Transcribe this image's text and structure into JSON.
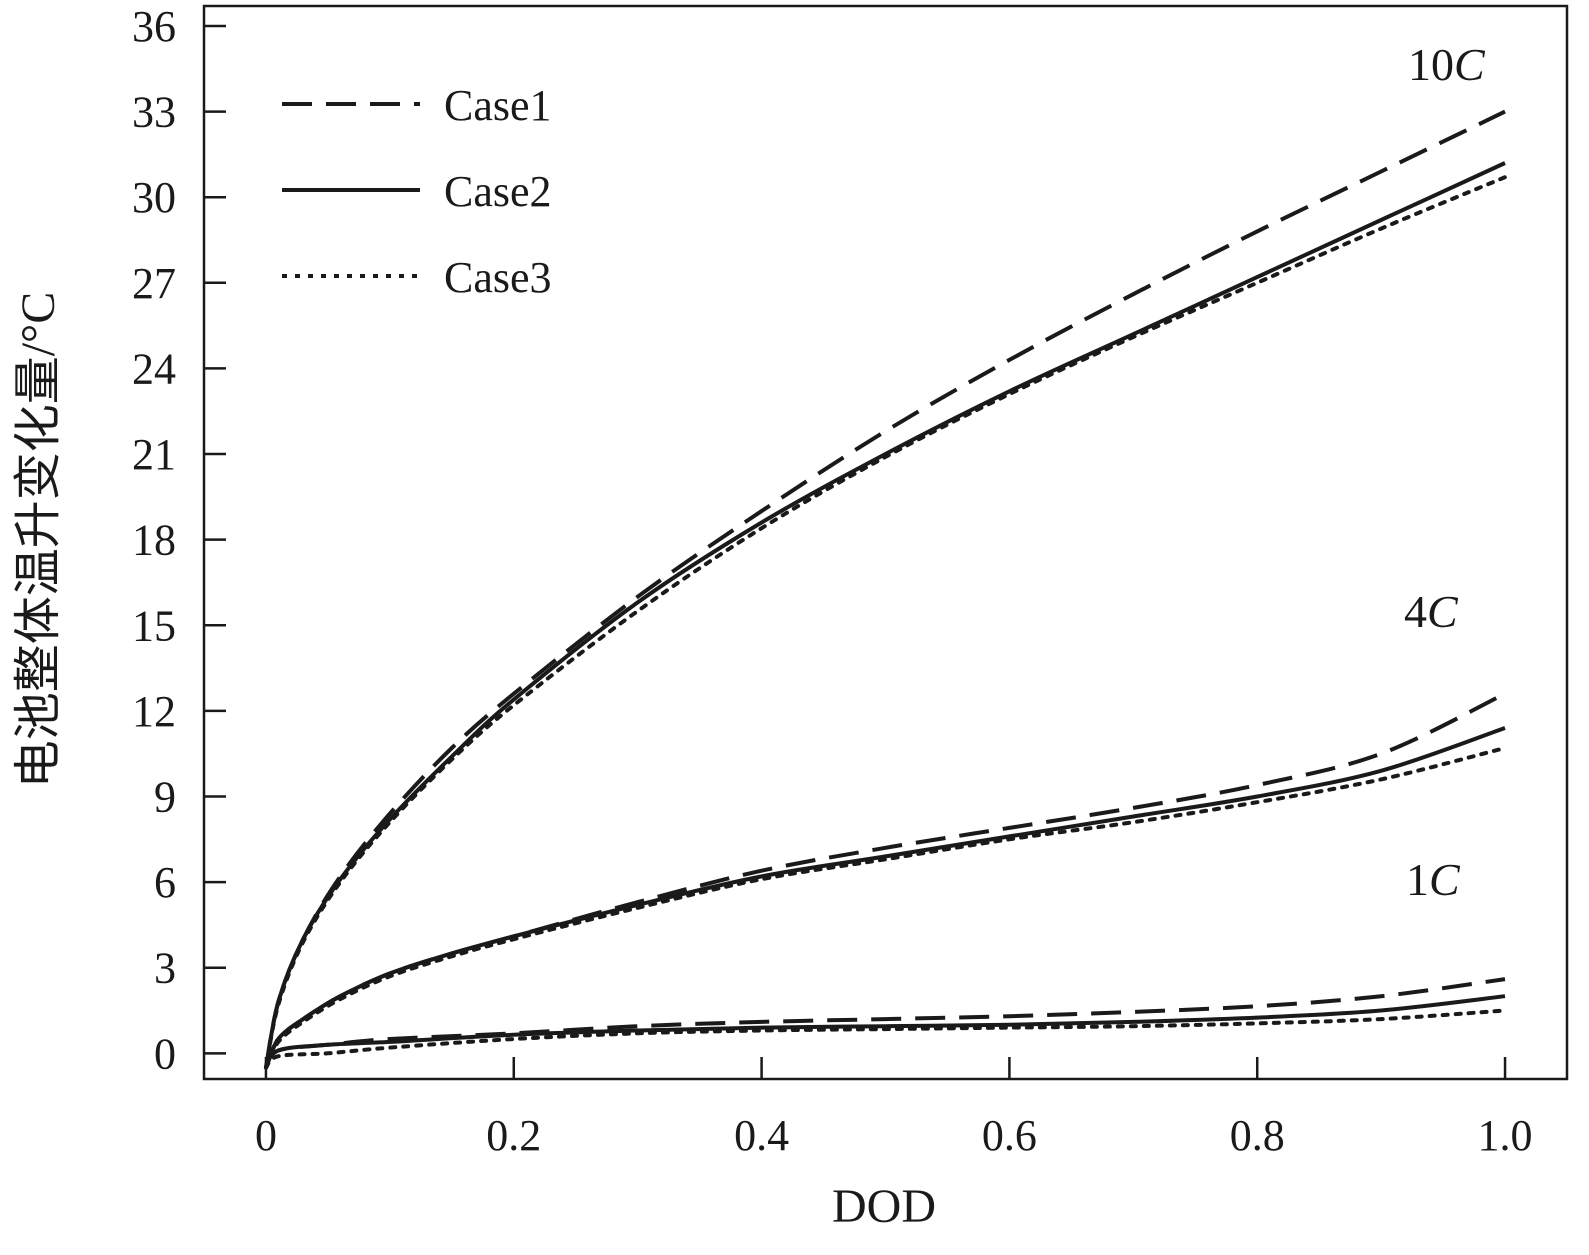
{
  "chart_data": {
    "type": "line",
    "title": "",
    "xlabel": "DOD",
    "ylabel": "电池整体温升变化量/°C",
    "xlim": [
      -0.05,
      1.05
    ],
    "ylim": [
      -0.9,
      36.7
    ],
    "xticks": [
      0,
      0.2,
      0.4,
      0.6,
      0.8,
      1.0
    ],
    "xtick_labels": [
      "0",
      "0.2",
      "0.4",
      "0.6",
      "0.8",
      "1.0"
    ],
    "yticks": [
      0,
      3,
      6,
      9,
      12,
      15,
      18,
      21,
      24,
      27,
      30,
      33,
      36
    ],
    "ytick_labels": [
      "0",
      "3",
      "6",
      "9",
      "12",
      "15",
      "18",
      "21",
      "24",
      "27",
      "30",
      "33",
      "36"
    ],
    "grid": false,
    "legend": {
      "position": "top-left",
      "entries": [
        {
          "name": "Case1",
          "style": "dashed"
        },
        {
          "name": "Case2",
          "style": "solid"
        },
        {
          "name": "Case3",
          "style": "dotted"
        }
      ]
    },
    "rate_labels": [
      {
        "num": "10",
        "unit": "C",
        "rate": "10C"
      },
      {
        "num": "4",
        "unit": "C",
        "rate": "4C"
      },
      {
        "num": "1",
        "unit": "C",
        "rate": "1C"
      }
    ],
    "series": [
      {
        "name": "Case1",
        "rate": "10C",
        "style": "dashed",
        "x": [
          0,
          0.01,
          0.03,
          0.06,
          0.1,
          0.15,
          0.2,
          0.3,
          0.4,
          0.5,
          0.6,
          0.7,
          0.8,
          0.9,
          1.0
        ],
        "y": [
          -0.5,
          1.8,
          4.0,
          6.2,
          8.4,
          10.7,
          12.6,
          16.0,
          19.0,
          21.8,
          24.3,
          26.6,
          28.8,
          30.9,
          33.0
        ]
      },
      {
        "name": "Case2",
        "rate": "10C",
        "style": "solid",
        "x": [
          0,
          0.01,
          0.03,
          0.06,
          0.1,
          0.15,
          0.2,
          0.3,
          0.4,
          0.5,
          0.6,
          0.7,
          0.8,
          0.9,
          1.0
        ],
        "y": [
          -0.5,
          1.8,
          4.0,
          6.1,
          8.2,
          10.4,
          12.4,
          15.8,
          18.6,
          21.0,
          23.2,
          25.2,
          27.2,
          29.2,
          31.2
        ]
      },
      {
        "name": "Case3",
        "rate": "10C",
        "style": "dotted",
        "x": [
          0,
          0.01,
          0.03,
          0.06,
          0.1,
          0.15,
          0.2,
          0.3,
          0.4,
          0.5,
          0.6,
          0.7,
          0.8,
          0.9,
          1.0
        ],
        "y": [
          -0.5,
          1.7,
          3.9,
          6.0,
          8.1,
          10.3,
          12.2,
          15.5,
          18.4,
          20.9,
          23.1,
          25.1,
          27.0,
          28.9,
          30.7
        ]
      },
      {
        "name": "Case1",
        "rate": "4C",
        "style": "dashed",
        "x": [
          0,
          0.01,
          0.03,
          0.06,
          0.1,
          0.15,
          0.2,
          0.3,
          0.4,
          0.5,
          0.6,
          0.7,
          0.8,
          0.9,
          1.0
        ],
        "y": [
          -0.5,
          0.5,
          1.2,
          2.0,
          2.8,
          3.5,
          4.1,
          5.3,
          6.4,
          7.2,
          7.9,
          8.6,
          9.4,
          10.5,
          12.6
        ]
      },
      {
        "name": "Case2",
        "rate": "4C",
        "style": "solid",
        "x": [
          0,
          0.01,
          0.03,
          0.06,
          0.1,
          0.15,
          0.2,
          0.3,
          0.4,
          0.5,
          0.6,
          0.7,
          0.8,
          0.9,
          1.0
        ],
        "y": [
          -0.5,
          0.5,
          1.2,
          2.0,
          2.8,
          3.5,
          4.1,
          5.2,
          6.2,
          6.9,
          7.6,
          8.3,
          9.0,
          9.9,
          11.4
        ]
      },
      {
        "name": "Case3",
        "rate": "4C",
        "style": "dotted",
        "x": [
          0,
          0.01,
          0.03,
          0.06,
          0.1,
          0.15,
          0.2,
          0.3,
          0.4,
          0.5,
          0.6,
          0.7,
          0.8,
          0.9,
          1.0
        ],
        "y": [
          -0.5,
          0.4,
          1.1,
          1.9,
          2.7,
          3.4,
          4.0,
          5.1,
          6.1,
          6.8,
          7.5,
          8.1,
          8.8,
          9.6,
          10.7
        ]
      },
      {
        "name": "Case1",
        "rate": "1C",
        "style": "dashed",
        "x": [
          0,
          0.01,
          0.05,
          0.1,
          0.2,
          0.3,
          0.4,
          0.5,
          0.6,
          0.7,
          0.8,
          0.9,
          1.0
        ],
        "y": [
          -0.5,
          0.1,
          0.3,
          0.5,
          0.7,
          0.95,
          1.1,
          1.2,
          1.3,
          1.45,
          1.65,
          2.0,
          2.6
        ]
      },
      {
        "name": "Case2",
        "rate": "1C",
        "style": "solid",
        "x": [
          0,
          0.01,
          0.05,
          0.1,
          0.2,
          0.3,
          0.4,
          0.5,
          0.6,
          0.7,
          0.8,
          0.9,
          1.0
        ],
        "y": [
          -0.5,
          0.1,
          0.3,
          0.4,
          0.65,
          0.8,
          0.9,
          0.95,
          1.0,
          1.1,
          1.25,
          1.5,
          2.0
        ]
      },
      {
        "name": "Case3",
        "rate": "1C",
        "style": "dotted",
        "x": [
          0,
          0.01,
          0.05,
          0.1,
          0.2,
          0.3,
          0.4,
          0.5,
          0.6,
          0.7,
          0.8,
          0.9,
          1.0
        ],
        "y": [
          -0.5,
          -0.1,
          0.0,
          0.2,
          0.5,
          0.7,
          0.8,
          0.85,
          0.9,
          0.95,
          1.05,
          1.2,
          1.5
        ]
      }
    ]
  }
}
